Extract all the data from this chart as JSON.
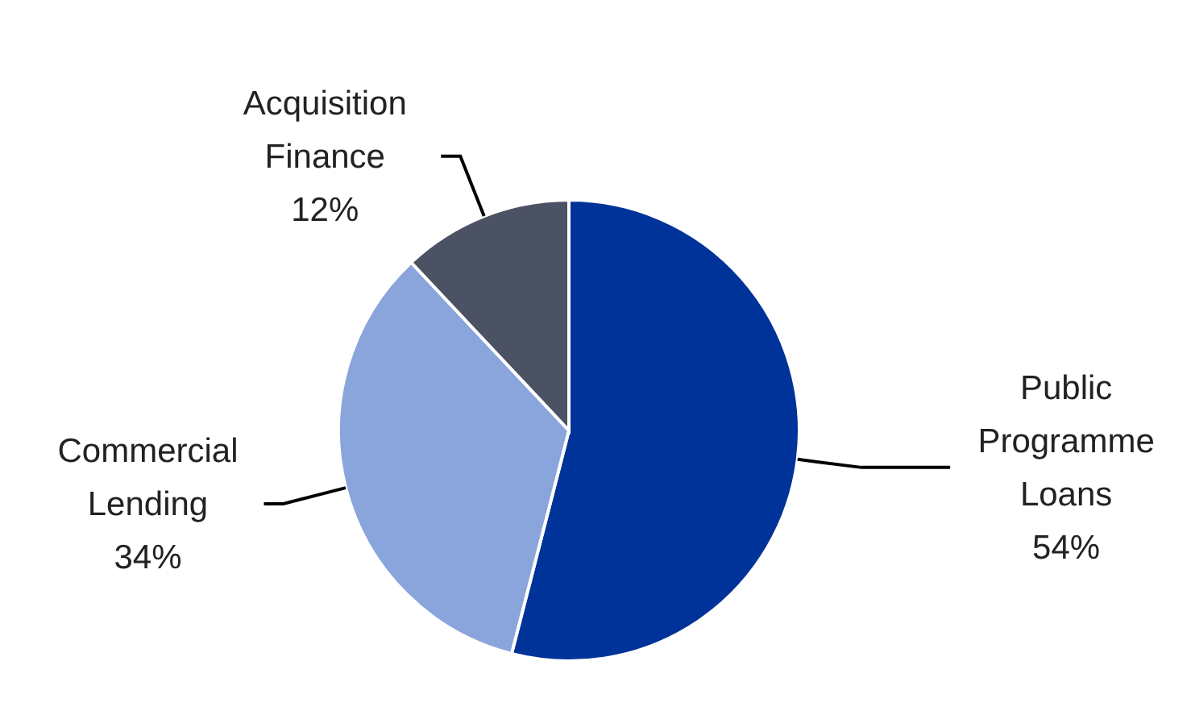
{
  "chart_data": {
    "type": "pie",
    "categories": [
      "Public Programme Loans",
      "Commercial Lending",
      "Acquisition Finance"
    ],
    "values": [
      54,
      34,
      12
    ],
    "colors": [
      "#003399",
      "#8aa5dc",
      "#4a5263"
    ],
    "value_labels": [
      "54%",
      "34%",
      "12%"
    ]
  }
}
